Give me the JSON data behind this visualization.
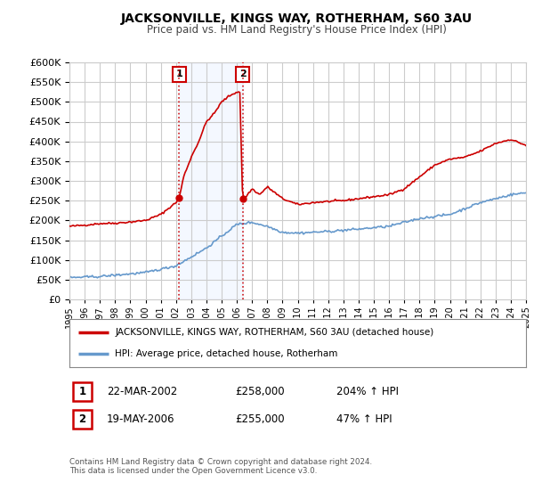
{
  "title": "JACKSONVILLE, KINGS WAY, ROTHERHAM, S60 3AU",
  "subtitle": "Price paid vs. HM Land Registry's House Price Index (HPI)",
  "legend_label_red": "JACKSONVILLE, KINGS WAY, ROTHERHAM, S60 3AU (detached house)",
  "legend_label_blue": "HPI: Average price, detached house, Rotherham",
  "table_rows": [
    {
      "num": "1",
      "date": "22-MAR-2002",
      "price": "£258,000",
      "hpi": "204% ↑ HPI"
    },
    {
      "num": "2",
      "date": "19-MAY-2006",
      "price": "£255,000",
      "hpi": "47% ↑ HPI"
    }
  ],
  "footnote": "Contains HM Land Registry data © Crown copyright and database right 2024.\nThis data is licensed under the Open Government Licence v3.0.",
  "red_color": "#cc0000",
  "blue_color": "#6699cc",
  "vline1_x": 2002.22,
  "vline2_x": 2006.38,
  "point1_x": 2002.22,
  "point1_y": 258000,
  "point2_x": 2006.38,
  "point2_y": 255000,
  "ylim": [
    0,
    600000
  ],
  "xlim": [
    1995,
    2025
  ],
  "yticks": [
    0,
    50000,
    100000,
    150000,
    200000,
    250000,
    300000,
    350000,
    400000,
    450000,
    500000,
    550000,
    600000
  ],
  "xticks": [
    1995,
    1996,
    1997,
    1998,
    1999,
    2000,
    2001,
    2002,
    2003,
    2004,
    2005,
    2006,
    2007,
    2008,
    2009,
    2010,
    2011,
    2012,
    2013,
    2014,
    2015,
    2016,
    2017,
    2018,
    2019,
    2020,
    2021,
    2022,
    2023,
    2024,
    2025
  ],
  "background_color": "#ffffff",
  "grid_color": "#cccccc",
  "red_key_years": [
    1995,
    1996,
    1997,
    1998,
    1999,
    2000,
    2001,
    2002.0,
    2002.22,
    2002.5,
    2003,
    2003.5,
    2004,
    2004.5,
    2005,
    2005.5,
    2006.0,
    2006.2,
    2006.38,
    2006.6,
    2007,
    2007.5,
    2008,
    2009,
    2010,
    2011,
    2012,
    2013,
    2014,
    2015,
    2016,
    2017,
    2018,
    2019,
    2020,
    2021,
    2022,
    2023,
    2024,
    2025
  ],
  "red_key_vals": [
    185000,
    188000,
    192000,
    193000,
    196000,
    200000,
    215000,
    245000,
    258000,
    310000,
    360000,
    400000,
    450000,
    470000,
    500000,
    515000,
    525000,
    525000,
    255000,
    260000,
    280000,
    265000,
    285000,
    255000,
    240000,
    245000,
    248000,
    250000,
    255000,
    260000,
    265000,
    280000,
    310000,
    340000,
    355000,
    360000,
    375000,
    395000,
    405000,
    390000
  ],
  "blue_key_years": [
    1995,
    1997,
    2000,
    2002,
    2004,
    2006,
    2007,
    2008,
    2009,
    2010,
    2012,
    2014,
    2016,
    2018,
    2020,
    2022,
    2024,
    2025
  ],
  "blue_key_vals": [
    55000,
    58000,
    68000,
    85000,
    130000,
    190000,
    195000,
    185000,
    170000,
    168000,
    172000,
    178000,
    185000,
    205000,
    215000,
    245000,
    265000,
    270000
  ]
}
